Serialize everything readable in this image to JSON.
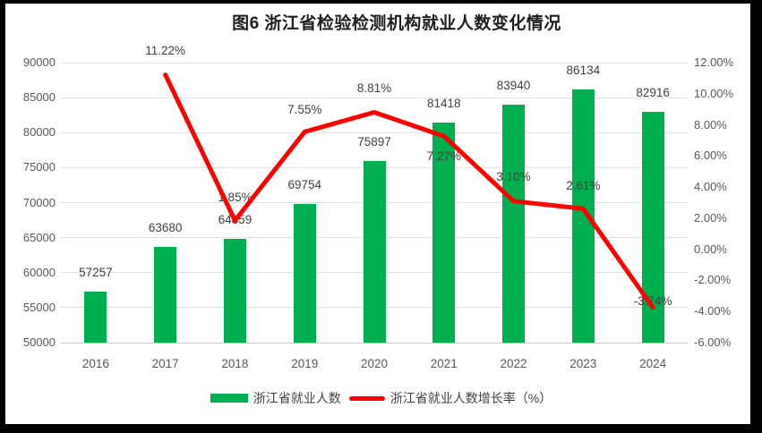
{
  "title": "图6  浙江省检验检测机构就业人数变化情况",
  "colors": {
    "bar": "#00B050",
    "line": "#FF0000",
    "grid": "#E2E2E2",
    "axis_text": "#595959",
    "data_label": "#404040",
    "title_text": "#1F1F1F",
    "frame": "#000000",
    "background": "#FFFFFF"
  },
  "chart_data": {
    "type": "bar",
    "subtype": "bar+line combo, dual axis",
    "title": "图6  浙江省检验检测机构就业人数变化情况",
    "categories": [
      "2016",
      "2017",
      "2018",
      "2019",
      "2020",
      "2021",
      "2022",
      "2023",
      "2024"
    ],
    "series": [
      {
        "name": "浙江省就业人数",
        "type": "bar",
        "axis": "left",
        "values": [
          57257,
          63680,
          64859,
          69754,
          75897,
          81418,
          83940,
          86134,
          82916
        ],
        "labels": [
          "57257",
          "63680",
          "64859",
          "69754",
          "75897",
          "81418",
          "83940",
          "86134",
          "82916"
        ]
      },
      {
        "name": "浙江省就业人数增长率（%）",
        "type": "line",
        "axis": "right",
        "values": [
          null,
          11.22,
          1.85,
          7.55,
          8.81,
          7.27,
          3.1,
          2.61,
          -3.74
        ],
        "labels": [
          "",
          "11.22%",
          "1.85%",
          "7.55%",
          "8.81%",
          "7.27%",
          "3.10%",
          "2.61%",
          "-3.74%"
        ]
      }
    ],
    "left_axis": {
      "min": 50000,
      "max": 90000,
      "step": 5000,
      "ticks": [
        "90000",
        "85000",
        "80000",
        "75000",
        "70000",
        "65000",
        "60000",
        "55000",
        "50000"
      ]
    },
    "right_axis": {
      "min": -6,
      "max": 12,
      "step": 2,
      "ticks": [
        "12.00%",
        "10.00%",
        "8.00%",
        "6.00%",
        "4.00%",
        "2.00%",
        "0.00%",
        "-2.00%",
        "-4.00%",
        "-6.00%"
      ]
    },
    "grid": true,
    "legend_position": "bottom"
  },
  "legend": {
    "items": [
      {
        "label": "浙江省就业人数"
      },
      {
        "label": "浙江省就业人数增长率（%）"
      }
    ]
  }
}
